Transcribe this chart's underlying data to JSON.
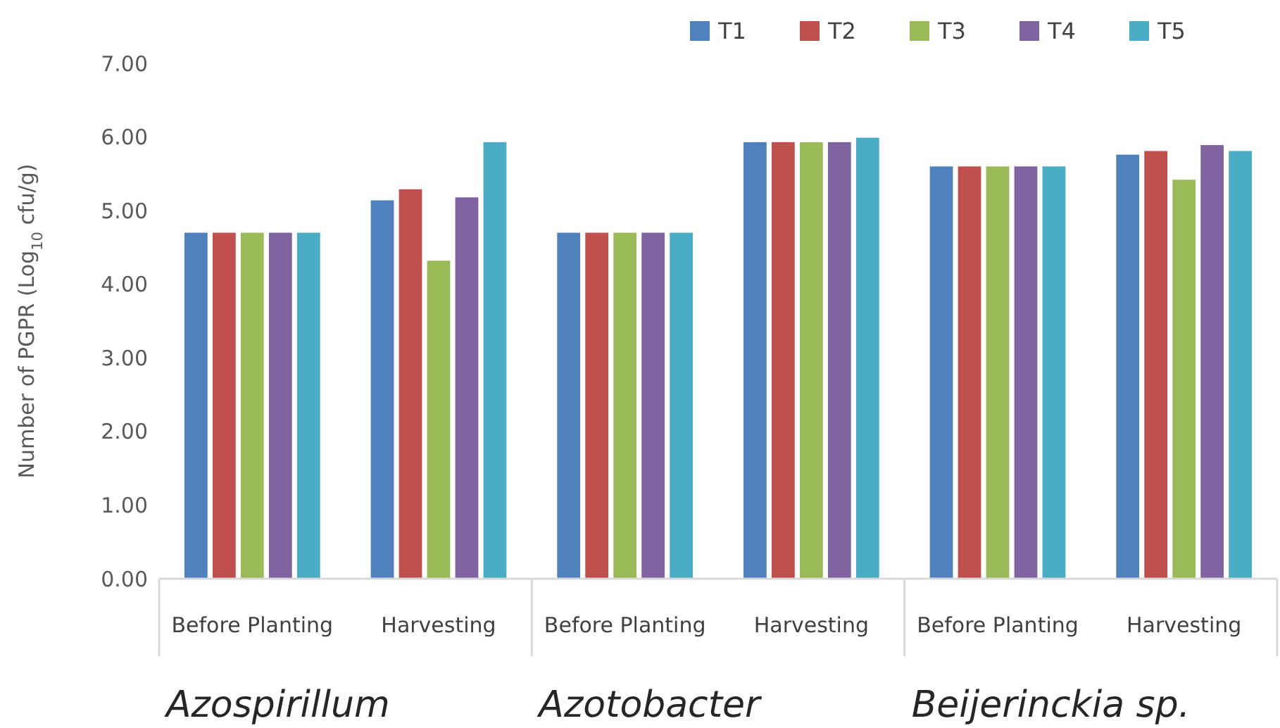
{
  "chart_data": {
    "type": "bar",
    "ylabel": "Number of PGPR (Log$_{10}$ cfu/g)",
    "categories": [
      "Before Planting",
      "Harvesting",
      "Before Planting",
      "Harvesting",
      "Before Planting",
      "Harvesting"
    ],
    "series": [
      {
        "name": "T1",
        "color": "#4f81bd",
        "values": [
          4.7,
          5.14,
          4.7,
          5.93,
          5.6,
          5.76
        ]
      },
      {
        "name": "T2",
        "color": "#c0504d",
        "values": [
          4.7,
          5.29,
          4.7,
          5.93,
          5.6,
          5.81
        ]
      },
      {
        "name": "T3",
        "color": "#9bbb59",
        "values": [
          4.7,
          4.32,
          4.7,
          5.93,
          5.6,
          5.42
        ]
      },
      {
        "name": "T4",
        "color": "#8064a2",
        "values": [
          4.7,
          5.18,
          4.7,
          5.93,
          5.6,
          5.89
        ]
      },
      {
        "name": "T5",
        "color": "#4bacc6",
        "values": [
          4.7,
          5.93,
          4.7,
          5.99,
          5.6,
          5.81
        ]
      }
    ],
    "ylim": [
      0,
      7
    ],
    "yticks": [
      {
        "value": 0,
        "label": "0.00"
      },
      {
        "value": 1,
        "label": "1.00"
      },
      {
        "value": 2,
        "label": "2.00"
      },
      {
        "value": 3,
        "label": "3.00"
      },
      {
        "value": 4,
        "label": "4.00"
      },
      {
        "value": 5,
        "label": "5.00"
      },
      {
        "value": 6,
        "label": "6.00"
      },
      {
        "value": 7,
        "label": "7.00"
      }
    ],
    "annotations": [
      "Azospirillum",
      "Azotobacter",
      "Beijerinckia sp."
    ],
    "grid": false,
    "legend": "top right"
  }
}
